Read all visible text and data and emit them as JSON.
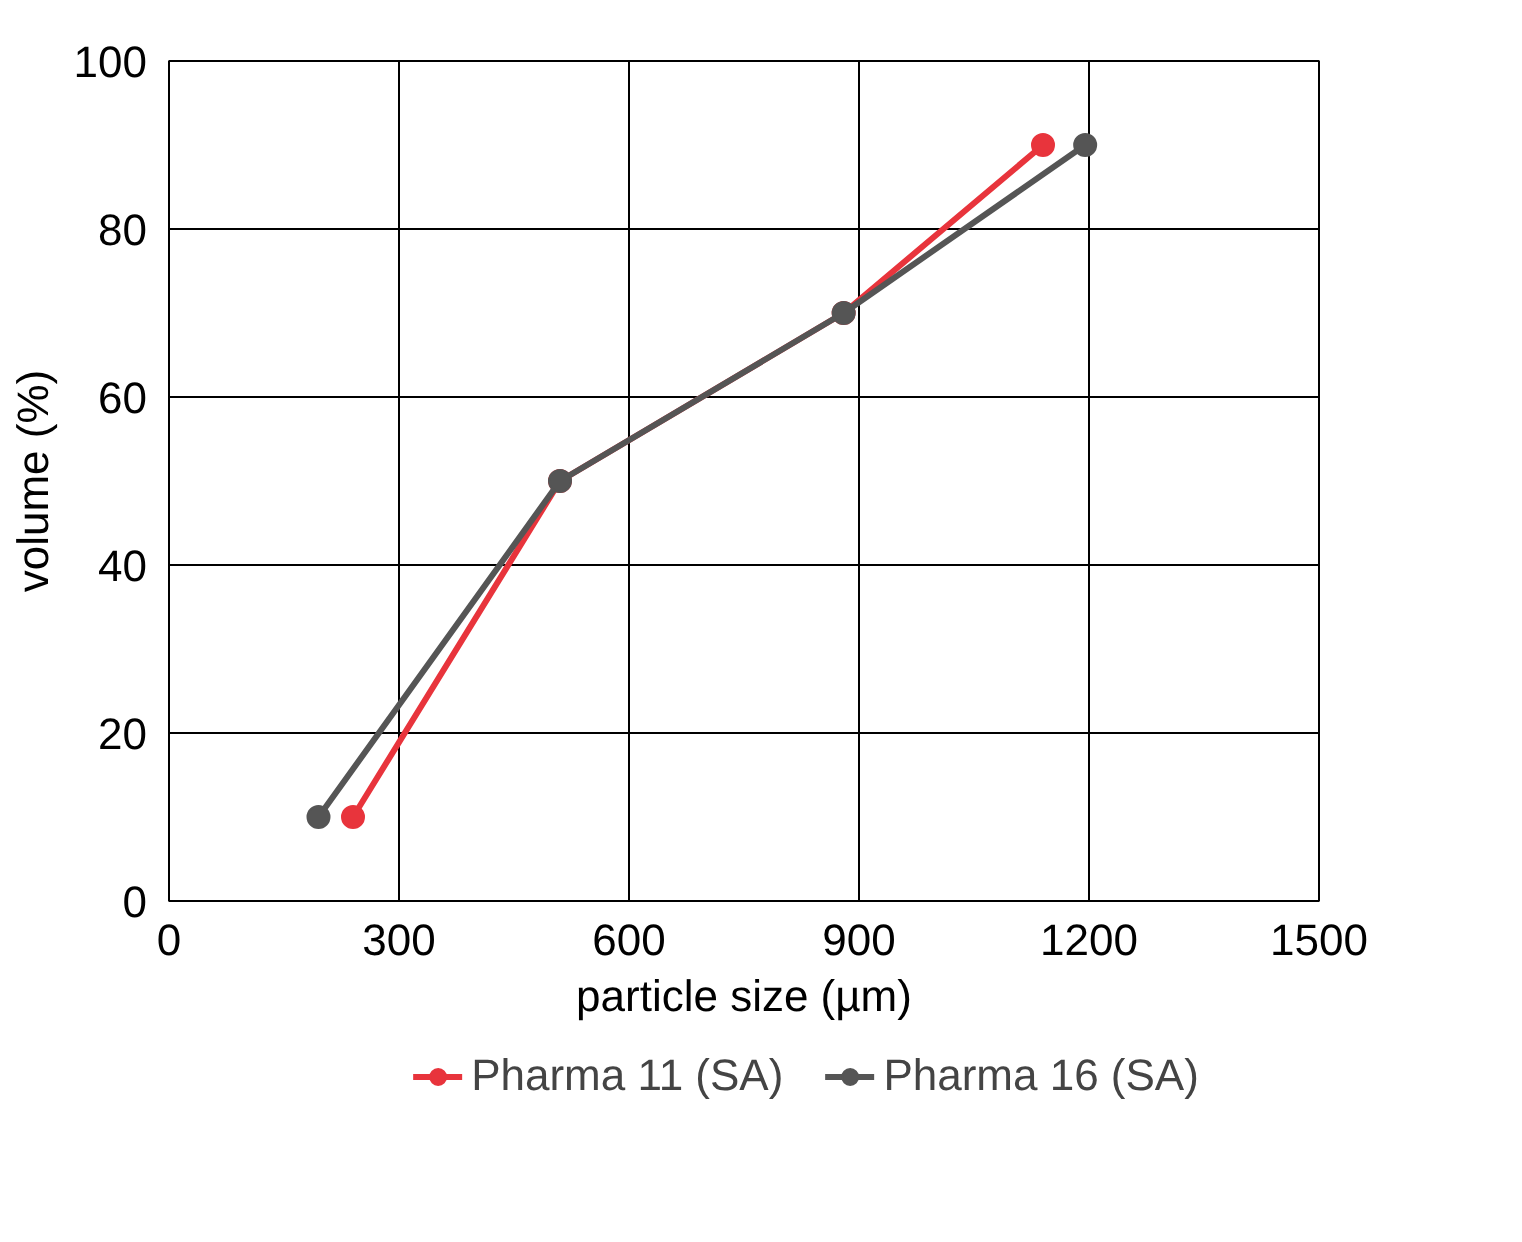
{
  "chart_data": {
    "type": "line",
    "xlabel": "particle size (µm)",
    "ylabel": "volume (%)",
    "xlim": [
      0,
      1500
    ],
    "xticks": [
      0,
      300,
      600,
      900,
      1200,
      1500
    ],
    "ylim": [
      0,
      100
    ],
    "yticks": [
      0,
      20,
      40,
      60,
      80,
      100
    ],
    "grid": true,
    "legend": "bottom",
    "marker": "circle",
    "line_style": "solid",
    "series": [
      {
        "name": "Pharma 11 (SA)",
        "color": "#e8343c",
        "x": [
          240,
          510,
          880,
          1140
        ],
        "values": [
          10,
          50,
          70,
          90
        ]
      },
      {
        "name": "Pharma 16 (SA)",
        "color": "#555555",
        "x": [
          195,
          510,
          880,
          1195
        ],
        "values": [
          10,
          50,
          70,
          90
        ]
      }
    ]
  }
}
